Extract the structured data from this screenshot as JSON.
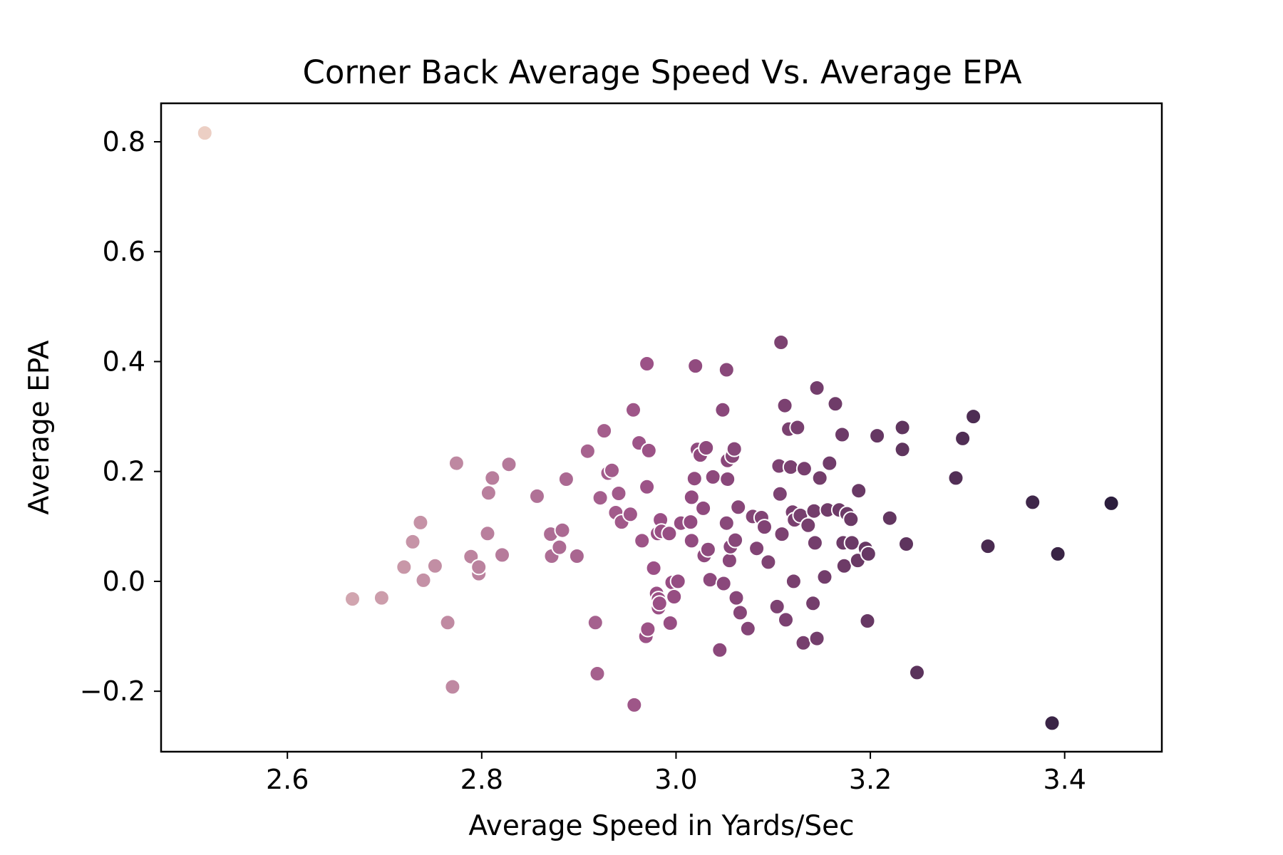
{
  "chart_data": {
    "type": "scatter",
    "title": "Corner Back Average Speed Vs. Average EPA",
    "xlabel": "Average Speed in Yards/Sec",
    "ylabel": "Average EPA",
    "xlim": [
      2.47,
      3.5
    ],
    "ylim": [
      -0.31,
      0.87
    ],
    "x_ticks": [
      2.6,
      2.8,
      3.0,
      3.2,
      3.4
    ],
    "x_tick_labels": [
      "2.6",
      "2.8",
      "3.0",
      "3.2",
      "3.4"
    ],
    "y_ticks": [
      -0.2,
      0.0,
      0.2,
      0.4,
      0.6,
      0.8
    ],
    "y_tick_labels": [
      "−0.2",
      "0.0",
      "0.2",
      "0.4",
      "0.6",
      "0.8"
    ],
    "grid": false,
    "legend": "none",
    "color_scale": {
      "low": "#eccfc4",
      "mid": "#9a4f85",
      "high": "#2c1e3d"
    },
    "points": [
      [
        2.515,
        0.816
      ],
      [
        2.667,
        -0.032
      ],
      [
        2.697,
        -0.03
      ],
      [
        2.72,
        0.026
      ],
      [
        2.729,
        0.072
      ],
      [
        2.737,
        0.107
      ],
      [
        2.74,
        0.002
      ],
      [
        2.752,
        0.028
      ],
      [
        2.765,
        -0.075
      ],
      [
        2.77,
        -0.192
      ],
      [
        2.774,
        0.215
      ],
      [
        2.789,
        0.045
      ],
      [
        2.797,
        0.014
      ],
      [
        2.797,
        0.026
      ],
      [
        2.806,
        0.087
      ],
      [
        2.807,
        0.161
      ],
      [
        2.811,
        0.188
      ],
      [
        2.821,
        0.048
      ],
      [
        2.828,
        0.213
      ],
      [
        2.857,
        0.155
      ],
      [
        2.871,
        0.086
      ],
      [
        2.872,
        0.046
      ],
      [
        2.88,
        0.062
      ],
      [
        2.883,
        0.093
      ],
      [
        2.887,
        0.186
      ],
      [
        2.898,
        0.046
      ],
      [
        2.909,
        0.237
      ],
      [
        2.917,
        -0.075
      ],
      [
        2.919,
        -0.168
      ],
      [
        2.922,
        0.152
      ],
      [
        2.926,
        0.274
      ],
      [
        2.93,
        0.197
      ],
      [
        2.934,
        0.202
      ],
      [
        2.938,
        0.125
      ],
      [
        2.941,
        0.16
      ],
      [
        2.944,
        0.108
      ],
      [
        2.953,
        0.122
      ],
      [
        2.956,
        0.312
      ],
      [
        2.957,
        -0.225
      ],
      [
        2.962,
        0.252
      ],
      [
        2.965,
        0.074
      ],
      [
        2.969,
        -0.1
      ],
      [
        2.97,
        0.396
      ],
      [
        2.97,
        0.172
      ],
      [
        2.971,
        -0.087
      ],
      [
        2.972,
        0.238
      ],
      [
        2.977,
        0.024
      ],
      [
        2.98,
        -0.022
      ],
      [
        2.981,
        0.087
      ],
      [
        2.982,
        -0.032
      ],
      [
        2.982,
        -0.048
      ],
      [
        2.983,
        -0.04
      ],
      [
        2.984,
        0.112
      ],
      [
        2.985,
        0.091
      ],
      [
        2.993,
        0.087
      ],
      [
        2.994,
        -0.076
      ],
      [
        2.996,
        -0.002
      ],
      [
        2.998,
        -0.028
      ],
      [
        3.002,
        0.0
      ],
      [
        3.005,
        0.106
      ],
      [
        3.015,
        0.108
      ],
      [
        3.016,
        0.153
      ],
      [
        3.016,
        0.074
      ],
      [
        3.019,
        0.187
      ],
      [
        3.02,
        0.392
      ],
      [
        3.022,
        0.24
      ],
      [
        3.025,
        0.23
      ],
      [
        3.028,
        0.133
      ],
      [
        3.029,
        0.047
      ],
      [
        3.031,
        0.243
      ],
      [
        3.033,
        0.058
      ],
      [
        3.035,
        0.003
      ],
      [
        3.038,
        0.19
      ],
      [
        3.045,
        -0.125
      ],
      [
        3.048,
        0.312
      ],
      [
        3.049,
        -0.004
      ],
      [
        3.052,
        0.106
      ],
      [
        3.052,
        0.385
      ],
      [
        3.053,
        0.22
      ],
      [
        3.053,
        0.186
      ],
      [
        3.055,
        0.038
      ],
      [
        3.056,
        0.063
      ],
      [
        3.058,
        0.228
      ],
      [
        3.06,
        0.241
      ],
      [
        3.061,
        0.075
      ],
      [
        3.062,
        -0.03
      ],
      [
        3.064,
        0.135
      ],
      [
        3.066,
        -0.057
      ],
      [
        3.074,
        -0.086
      ],
      [
        3.079,
        0.118
      ],
      [
        3.083,
        0.06
      ],
      [
        3.088,
        0.116
      ],
      [
        3.091,
        0.099
      ],
      [
        3.095,
        0.035
      ],
      [
        3.104,
        -0.046
      ],
      [
        3.106,
        0.21
      ],
      [
        3.107,
        0.159
      ],
      [
        3.108,
        0.435
      ],
      [
        3.109,
        0.086
      ],
      [
        3.112,
        0.32
      ],
      [
        3.113,
        -0.07
      ],
      [
        3.116,
        0.277
      ],
      [
        3.118,
        0.208
      ],
      [
        3.12,
        0.126
      ],
      [
        3.121,
        0.0
      ],
      [
        3.122,
        0.112
      ],
      [
        3.125,
        0.28
      ],
      [
        3.128,
        0.12
      ],
      [
        3.131,
        -0.112
      ],
      [
        3.132,
        0.205
      ],
      [
        3.136,
        0.102
      ],
      [
        3.141,
        -0.04
      ],
      [
        3.142,
        0.128
      ],
      [
        3.143,
        0.07
      ],
      [
        3.145,
        0.352
      ],
      [
        3.145,
        -0.104
      ],
      [
        3.148,
        0.188
      ],
      [
        3.153,
        0.008
      ],
      [
        3.156,
        0.13
      ],
      [
        3.158,
        0.215
      ],
      [
        3.164,
        0.323
      ],
      [
        3.168,
        0.13
      ],
      [
        3.171,
        0.267
      ],
      [
        3.172,
        0.07
      ],
      [
        3.173,
        0.028
      ],
      [
        3.176,
        0.123
      ],
      [
        3.18,
        0.113
      ],
      [
        3.181,
        0.07
      ],
      [
        3.187,
        0.038
      ],
      [
        3.188,
        0.165
      ],
      [
        3.195,
        0.06
      ],
      [
        3.197,
        -0.072
      ],
      [
        3.198,
        0.05
      ],
      [
        3.207,
        0.265
      ],
      [
        3.22,
        0.115
      ],
      [
        3.233,
        0.28
      ],
      [
        3.233,
        0.24
      ],
      [
        3.237,
        0.068
      ],
      [
        3.248,
        -0.166
      ],
      [
        3.288,
        0.188
      ],
      [
        3.295,
        0.26
      ],
      [
        3.306,
        0.3
      ],
      [
        3.321,
        0.064
      ],
      [
        3.367,
        0.144
      ],
      [
        3.387,
        -0.258
      ],
      [
        3.393,
        0.05
      ],
      [
        3.448,
        0.142
      ]
    ]
  }
}
